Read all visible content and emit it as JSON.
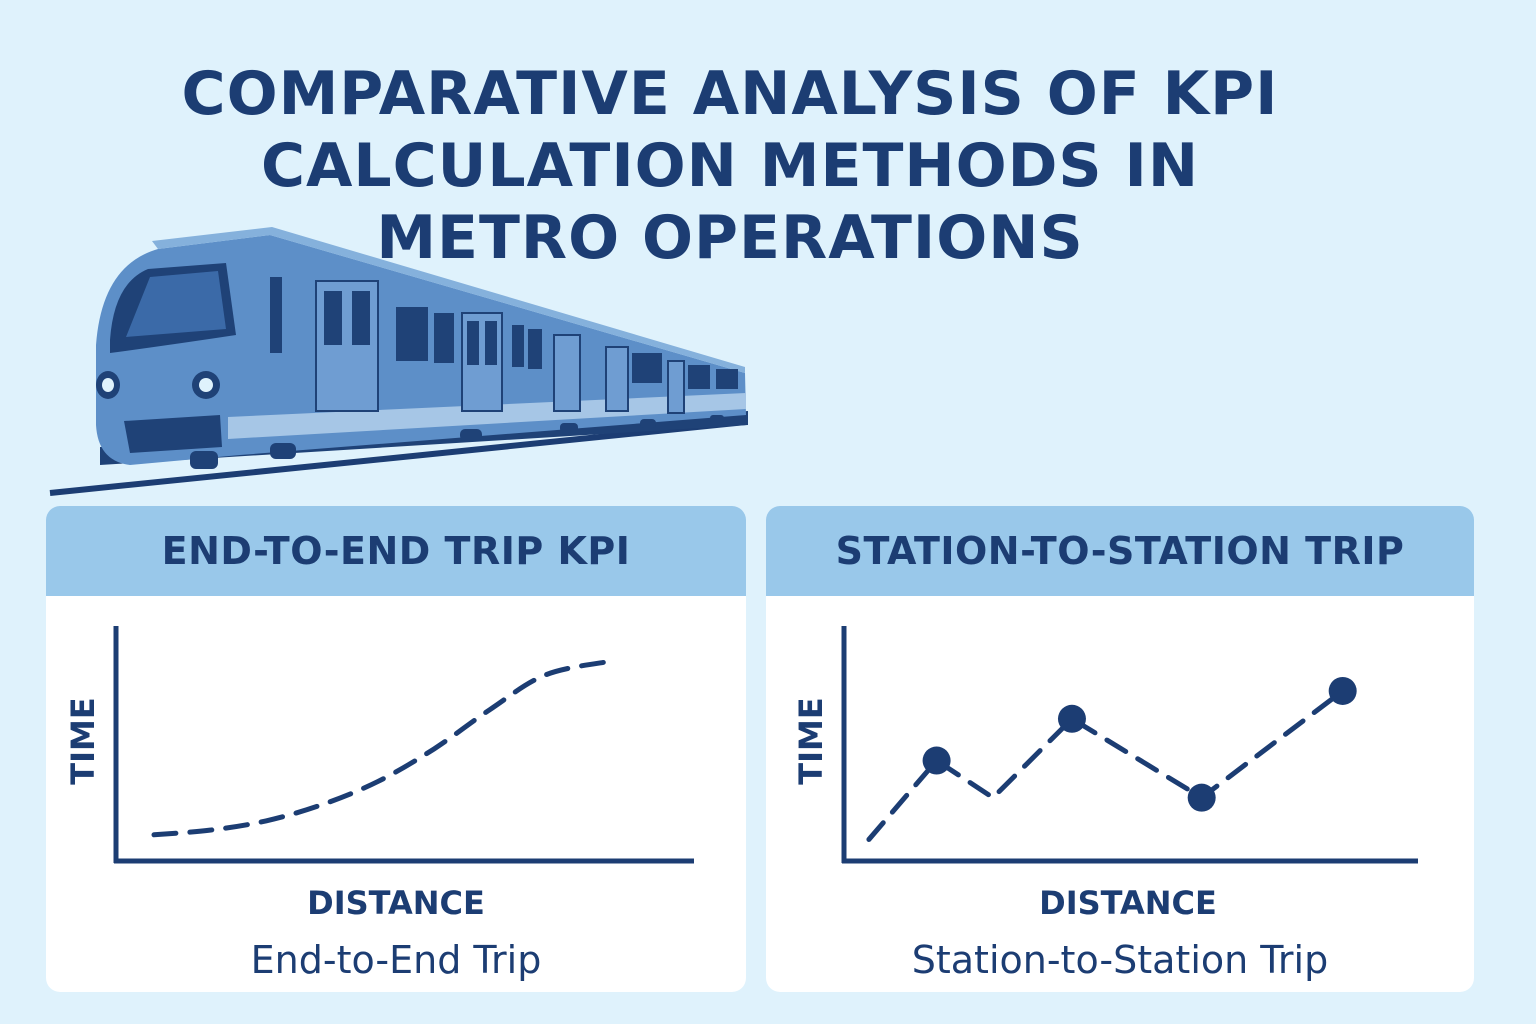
{
  "title_lines": [
    "COMPARATIVE ANALYSIS OF KPI",
    "CALCULATION METHODS IN",
    "METRO OPERATIONS"
  ],
  "colors": {
    "background": "#dff2fc",
    "navy": "#1c3d73",
    "header": "#99c8ea",
    "train_body": "#5d8fc8"
  },
  "illustration": {
    "icon": "metro-train-icon"
  },
  "chart_data": [
    {
      "type": "line",
      "panel_title": "END-TO-END TRIP KPI",
      "caption": "End-to-End Trip",
      "xlabel": "DISTANCE",
      "ylabel": "TIME",
      "line_style": "dashed",
      "markers": false,
      "xlim": [
        0,
        10
      ],
      "ylim": [
        0,
        10
      ],
      "x": [
        0.5,
        1.5,
        2.5,
        3.5,
        4.5,
        5.5,
        6.5,
        7.5,
        8.7
      ],
      "y": [
        1.0,
        1.2,
        1.6,
        2.3,
        3.3,
        4.7,
        6.4,
        7.9,
        8.5
      ]
    },
    {
      "type": "line",
      "panel_title": "STATION-TO-STATION TRIP",
      "caption": "Station-to-Station Trip",
      "xlabel": "DISTANCE",
      "ylabel": "TIME",
      "line_style": "dashed",
      "markers": true,
      "xlim": [
        0,
        10
      ],
      "ylim": [
        0,
        10
      ],
      "x": [
        0.3,
        1.5,
        2.5,
        3.9,
        6.2,
        8.7
      ],
      "y": [
        0.8,
        4.2,
        2.6,
        6.0,
        2.6,
        7.2
      ],
      "marker_points": [
        1,
        3,
        4,
        5
      ]
    }
  ]
}
